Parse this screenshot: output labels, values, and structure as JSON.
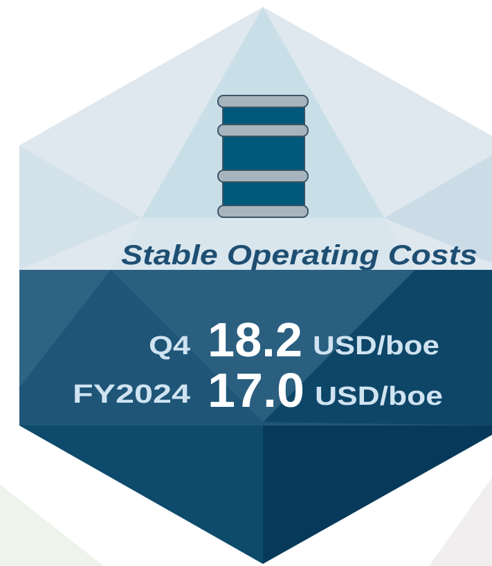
{
  "title": "Stable Operating Costs",
  "rows": [
    {
      "label": "Q4",
      "value": "18.2",
      "unit": "USD/boe"
    },
    {
      "label": "FY2024",
      "value": "17.0",
      "unit": "USD/boe"
    }
  ]
}
